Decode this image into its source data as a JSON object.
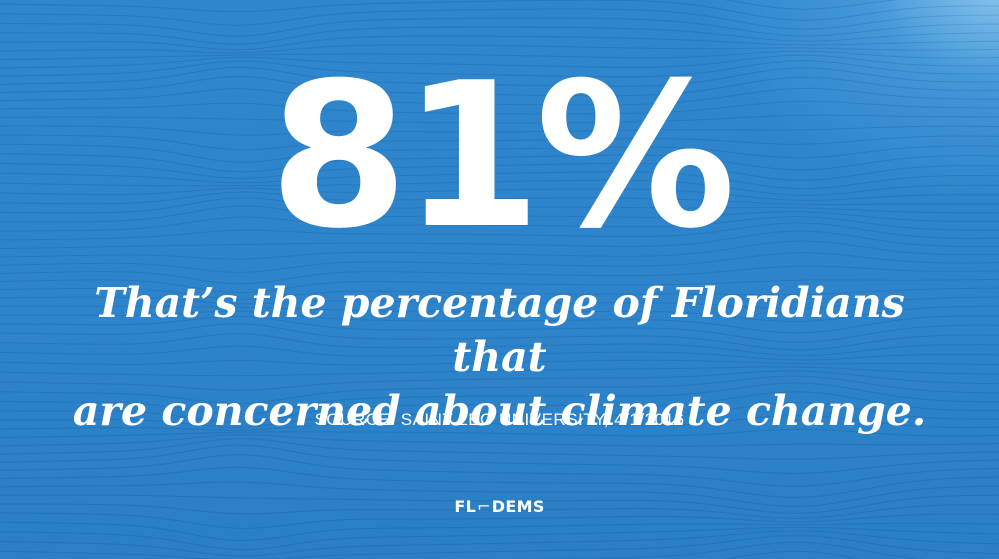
{
  "statistic": "81%",
  "caption": {
    "line1": "That’s the percentage of Floridians that",
    "line2": "are concerned about climate change."
  },
  "source": "SOURCE: SAINT LEO UNIVERSITY, 4/1/2016",
  "logo": {
    "left": "FL",
    "bracket": "⌐",
    "right": "DEMS"
  },
  "colors": {
    "background": "#2f86cc",
    "text": "#ffffff"
  }
}
